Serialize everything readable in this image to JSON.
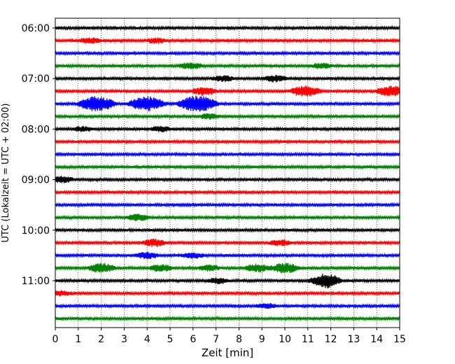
{
  "chart_data": {
    "type": "line",
    "subtype": "helicorder",
    "xlabel": "Zeit  [min]",
    "ylabel": "UTC (Lokalzeit = UTC + 02:00)",
    "xlim": [
      0,
      15
    ],
    "x_ticks": [
      "0",
      "1",
      "2",
      "3",
      "4",
      "5",
      "6",
      "7",
      "8",
      "9",
      "10",
      "11",
      "12",
      "13",
      "14",
      "15"
    ],
    "y_tick_labels": [
      "06:00",
      "07:00",
      "08:00",
      "09:00",
      "10:00",
      "11:00"
    ],
    "grid": {
      "vertical": true,
      "style": "dotted"
    },
    "trace_colors": [
      "#000000",
      "#ff0000",
      "#0000ff",
      "#008000"
    ],
    "rows": [
      {
        "start": "06:00",
        "bursts": []
      },
      {
        "start": "06:15",
        "bursts": [
          [
            1.5,
            1.4
          ],
          [
            4.4,
            1.2
          ]
        ]
      },
      {
        "start": "06:30",
        "bursts": []
      },
      {
        "start": "06:45",
        "bursts": [
          [
            5.9,
            1.6
          ],
          [
            11.6,
            1.2
          ]
        ]
      },
      {
        "start": "07:00",
        "bursts": [
          [
            7.3,
            1.4
          ],
          [
            9.6,
            1.5
          ]
        ]
      },
      {
        "start": "07:15",
        "bursts": [
          [
            6.5,
            2.0
          ],
          [
            10.9,
            2.8
          ],
          [
            14.6,
            2.6
          ]
        ]
      },
      {
        "start": "07:30",
        "bursts": [
          [
            1.8,
            3.8
          ],
          [
            4.0,
            3.8
          ],
          [
            6.2,
            4.2
          ]
        ]
      },
      {
        "start": "07:45",
        "bursts": [
          [
            6.7,
            1.2
          ]
        ]
      },
      {
        "start": "08:00",
        "bursts": [
          [
            1.2,
            1.2
          ],
          [
            4.6,
            1.2
          ]
        ]
      },
      {
        "start": "08:15",
        "bursts": []
      },
      {
        "start": "08:30",
        "bursts": []
      },
      {
        "start": "08:45",
        "bursts": []
      },
      {
        "start": "09:00",
        "bursts": [
          [
            0.3,
            1.5
          ]
        ]
      },
      {
        "start": "09:15",
        "bursts": []
      },
      {
        "start": "09:30",
        "bursts": []
      },
      {
        "start": "09:45",
        "bursts": [
          [
            3.6,
            1.6
          ]
        ]
      },
      {
        "start": "10:00",
        "bursts": []
      },
      {
        "start": "10:15",
        "bursts": [
          [
            4.3,
            1.8
          ],
          [
            9.8,
            1.4
          ]
        ]
      },
      {
        "start": "10:30",
        "bursts": [
          [
            4.0,
            1.5
          ],
          [
            6.0,
            1.3
          ]
        ]
      },
      {
        "start": "10:45",
        "bursts": [
          [
            2.0,
            2.3
          ],
          [
            4.6,
            1.6
          ],
          [
            6.7,
            1.4
          ],
          [
            8.8,
            1.9
          ],
          [
            10.0,
            2.4
          ]
        ]
      },
      {
        "start": "11:00",
        "bursts": [
          [
            7.1,
            1.3
          ],
          [
            11.7,
            2.6
          ],
          [
            12.0,
            1.6
          ]
        ]
      },
      {
        "start": "11:15",
        "bursts": [
          [
            0.3,
            1.2
          ]
        ]
      },
      {
        "start": "11:30",
        "bursts": [
          [
            9.2,
            1.2
          ]
        ]
      },
      {
        "start": "11:45",
        "bursts": []
      }
    ]
  }
}
